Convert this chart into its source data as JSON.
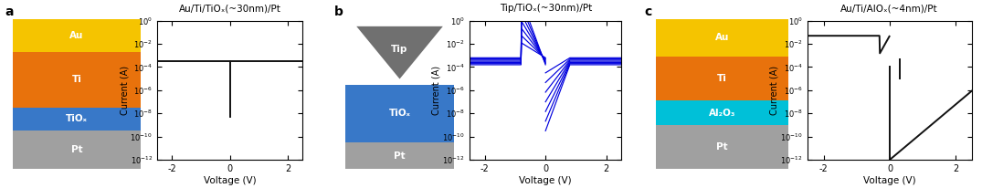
{
  "panel_a": {
    "title": "Au/Ti/TiOₓ(~30nm)/Pt",
    "layers": [
      {
        "label": "Au",
        "color": "#F5C400",
        "text_color": "white"
      },
      {
        "label": "Ti",
        "color": "#E8720C",
        "text_color": "white"
      },
      {
        "label": "TiOₓ",
        "color": "#3878C8",
        "text_color": "white"
      },
      {
        "label": "Pt",
        "color": "#A0A0A0",
        "text_color": "white"
      }
    ],
    "plot_color": "#111111"
  },
  "panel_b": {
    "title": "Tip/TiOₓ(~30nm)/Pt",
    "tip_color": "#707070",
    "layers": [
      {
        "label": "TiOₓ",
        "color": "#3878C8",
        "text_color": "white"
      },
      {
        "label": "Pt",
        "color": "#A0A0A0",
        "text_color": "white"
      }
    ],
    "plot_color": "#0000DD"
  },
  "panel_c": {
    "title": "Au/Ti/AlOₓ(~4nm)/Pt",
    "layers": [
      {
        "label": "Au",
        "color": "#F5C400",
        "text_color": "white"
      },
      {
        "label": "Ti",
        "color": "#E8720C",
        "text_color": "white"
      },
      {
        "label": "Al₂O₃",
        "color": "#00C0D8",
        "text_color": "white"
      },
      {
        "label": "Pt",
        "color": "#A0A0A0",
        "text_color": "white"
      }
    ],
    "plot_color": "#111111"
  },
  "ylabel": "Current (A)",
  "xlabel": "Voltage (V)",
  "bg_color": "#FFFFFF"
}
